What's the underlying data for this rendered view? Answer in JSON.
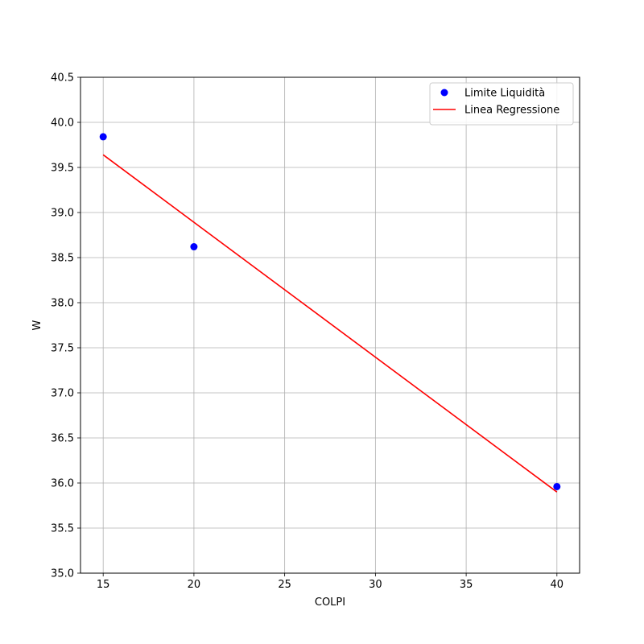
{
  "chart_data": {
    "type": "scatter",
    "xlabel": "COLPI",
    "ylabel": "W",
    "xlim": [
      13.75,
      41.25
    ],
    "ylim": [
      35.0,
      40.5
    ],
    "x_ticks": [
      15,
      20,
      25,
      30,
      35,
      40
    ],
    "y_ticks": [
      35.0,
      35.5,
      36.0,
      36.5,
      37.0,
      37.5,
      38.0,
      38.5,
      39.0,
      39.5,
      40.0,
      40.5
    ],
    "grid": true,
    "legend_position": "top-right",
    "series": [
      {
        "name": "Limite Liquidità",
        "kind": "points",
        "color": "#0000ff",
        "x": [
          15,
          20,
          40
        ],
        "y": [
          39.84,
          38.62,
          35.96
        ]
      },
      {
        "name": "Linea Regressione",
        "kind": "line",
        "color": "#ff0000",
        "x": [
          15,
          40
        ],
        "y": [
          39.64,
          35.9
        ]
      }
    ]
  }
}
